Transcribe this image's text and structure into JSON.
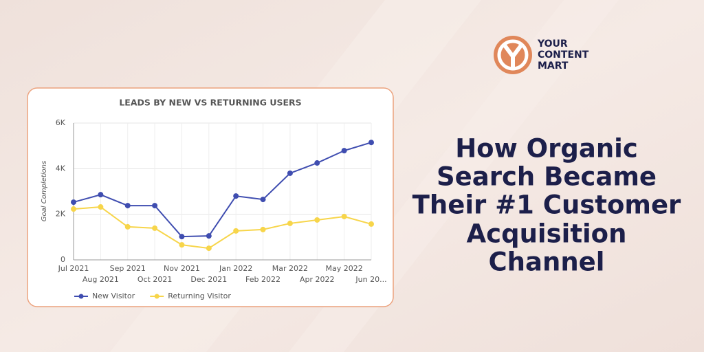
{
  "brand": {
    "lines": [
      "YOUR",
      "CONTENT",
      "MART"
    ]
  },
  "headline": {
    "lines": [
      "How Organic",
      "Search Became",
      "Their #1 Customer",
      "Acquisition",
      "Channel"
    ]
  },
  "chart_data": {
    "type": "line",
    "title": "LEADS BY NEW VS RETURNING USERS",
    "y_label": "Goal Completions",
    "categories": [
      "Jul 2021",
      "Aug 2021",
      "Sep 2021",
      "Oct 2021",
      "Nov 2021",
      "Dec 2021",
      "Jan 2022",
      "Feb 2022",
      "Mar 2022",
      "Apr 2022",
      "May 2022",
      "Jun 20..."
    ],
    "series": [
      {
        "name": "New Visitor",
        "color": "#3f4db0",
        "values": [
          2530,
          2860,
          2380,
          2380,
          1020,
          1050,
          2800,
          2650,
          3800,
          4250,
          4790,
          5150
        ]
      },
      {
        "name": "Returning Visitor",
        "color": "#f7d54a",
        "values": [
          2230,
          2320,
          1450,
          1390,
          660,
          510,
          1270,
          1330,
          1600,
          1750,
          1900,
          1570
        ]
      }
    ],
    "ylim": [
      0,
      6000
    ],
    "yticks": [
      0,
      {
        "value": 2000,
        "label": "2K"
      },
      {
        "value": 4000,
        "label": "4K"
      },
      {
        "value": 6000,
        "label": "6K"
      }
    ],
    "grid": true,
    "legend": "bottom-left"
  }
}
